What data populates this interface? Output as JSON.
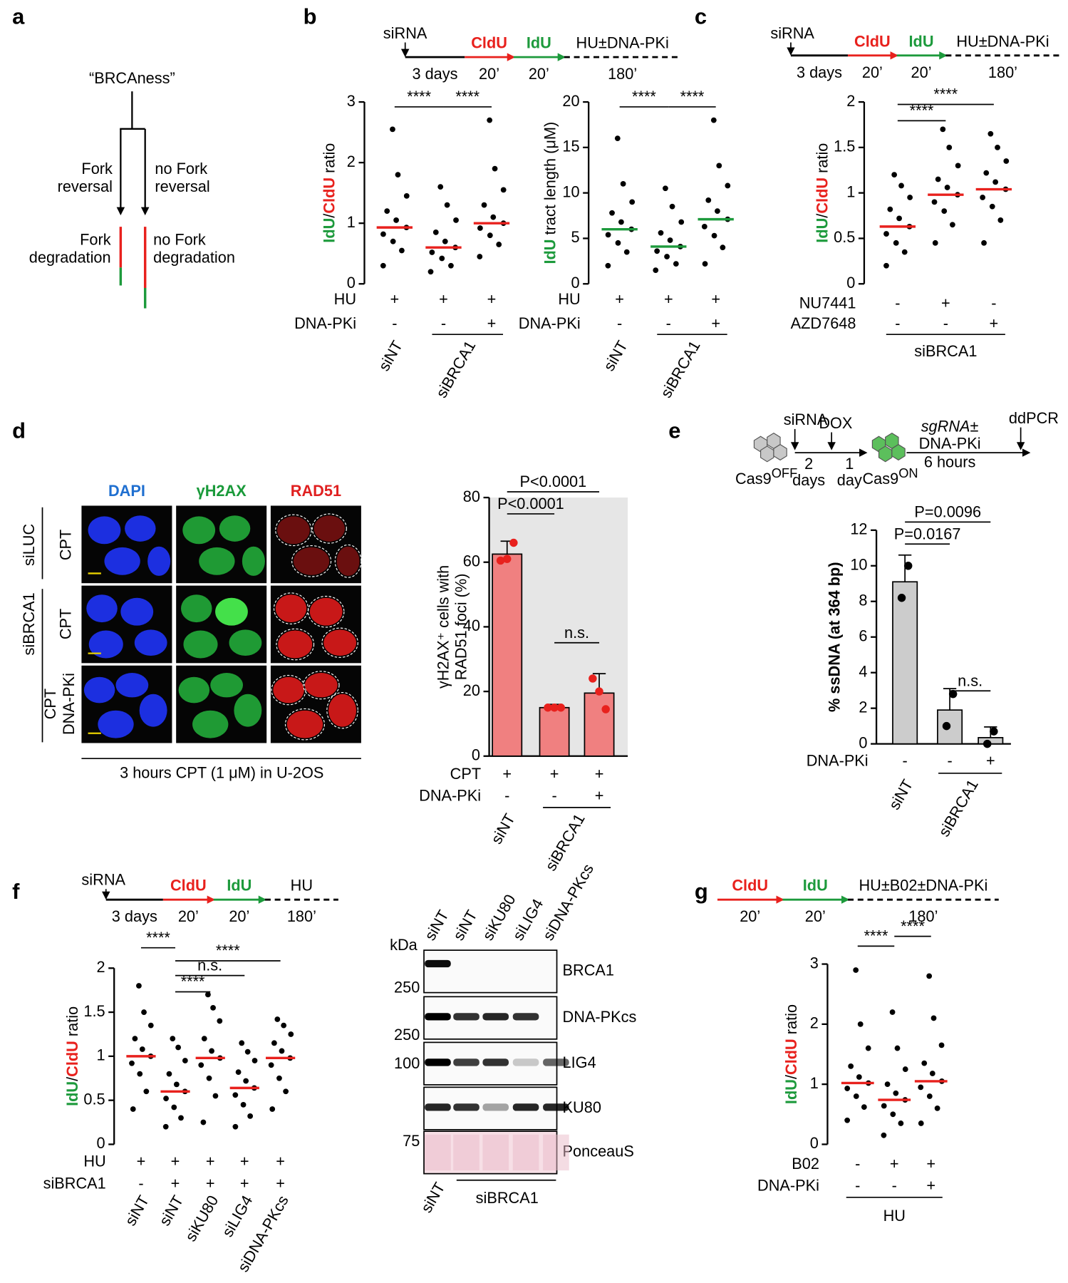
{
  "panel_labels": [
    "a",
    "b",
    "c",
    "d",
    "e",
    "f",
    "g"
  ],
  "diagram_a": {
    "root": "“BRCAness”",
    "left_branch": [
      "Fork",
      "reversal"
    ],
    "right_branch": [
      "no Fork",
      "reversal"
    ],
    "left_outcome": [
      "Fork",
      "degradation"
    ],
    "right_outcome": [
      "no Fork",
      "degradation"
    ]
  },
  "timelines": [
    {
      "start": "siRNA",
      "steps": [
        "CldU",
        "IdU",
        "HU±DNA-PKi"
      ],
      "durations": [
        "3 days",
        "20’",
        "20’",
        "180’"
      ]
    },
    {
      "start": "siRNA",
      "steps": [
        "CldU",
        "IdU",
        "HU±DNA-PKi"
      ],
      "durations": [
        "3 days",
        "20’",
        "20’",
        "180’"
      ]
    },
    {
      "start": "siRNA",
      "steps": [
        "CldU",
        "IdU",
        "HU"
      ],
      "durations": [
        "3 days",
        "20’",
        "20’",
        "180’"
      ]
    },
    {
      "steps": [
        "CldU",
        "IdU",
        "HU±B02±DNA-PKi"
      ],
      "durations": [
        "20’",
        "20’",
        "180’"
      ]
    }
  ],
  "microscopy": {
    "channels": [
      "DAPI",
      "γH2AX",
      "RAD51"
    ],
    "groups": [
      "siLUC",
      "siBRCA1"
    ],
    "treatments": [
      [
        "CPT"
      ],
      [
        "CPT"
      ],
      [
        "CPT",
        "DNA-PKi"
      ]
    ],
    "caption": "3 hours CPT (1 μM) in U-2OS"
  },
  "schematic_e": {
    "start": "siRNA",
    "dox": "DOX",
    "cells_off": [
      "Cas9",
      "OFF"
    ],
    "steps": [
      [
        "2",
        "days"
      ],
      [
        "1",
        "day"
      ]
    ],
    "cells_on": [
      "Cas9",
      "ON"
    ],
    "treatment": [
      "sgRNA±",
      "DNA-PKi",
      "6 hours"
    ],
    "end": "ddPCR"
  },
  "blot": {
    "unit": "kDa",
    "lanes": [
      "siNT",
      "siNT",
      "siKU80",
      "siLIG4",
      "siDNA-PKcs"
    ],
    "markers": [
      250,
      250,
      100,
      75
    ],
    "proteins": [
      "BRCA1",
      "DNA-PKcs",
      "LIG4",
      "KU80",
      "PonceauS"
    ],
    "bottom": [
      "siNT",
      "siBRCA1"
    ]
  },
  "chart_data": [
    {
      "type": "strip",
      "ylabel": [
        {
          "text": "IdU",
          "color": "#1d9a3c"
        },
        {
          "text": "/",
          "color": "#000000"
        },
        {
          "text": "CldU",
          "color": "#e8211d"
        },
        {
          "text": " ratio",
          "color": "#000000"
        }
      ],
      "ylim": [
        0,
        3
      ],
      "yticks": [
        0,
        1,
        2,
        3
      ],
      "median_color": "#e8211d",
      "point_color": "#000000",
      "groups": [
        {
          "median": 0.93,
          "points": [
            0.3,
            0.55,
            0.7,
            0.82,
            0.93,
            1.05,
            1.2,
            1.45,
            1.8,
            2.55
          ]
        },
        {
          "median": 0.6,
          "points": [
            0.2,
            0.3,
            0.42,
            0.52,
            0.6,
            0.7,
            0.85,
            1.05,
            1.3,
            1.6
          ]
        },
        {
          "median": 1.0,
          "points": [
            0.45,
            0.65,
            0.8,
            0.92,
            1.0,
            1.1,
            1.3,
            1.55,
            1.9,
            2.7
          ]
        }
      ],
      "significance": [
        {
          "from": 0,
          "to": 1,
          "label": "****"
        },
        {
          "from": 1,
          "to": 2,
          "label": "****"
        }
      ],
      "conditions": [
        {
          "name": "HU",
          "marks": [
            "+",
            "+",
            "+"
          ]
        },
        {
          "name": "DNA-PKi",
          "marks": [
            "-",
            "-",
            "+"
          ]
        }
      ],
      "group_labels": [
        {
          "text": "siNT",
          "from": 0,
          "to": 0
        },
        {
          "text": "siBRCA1",
          "from": 1,
          "to": 2
        }
      ]
    },
    {
      "type": "strip",
      "ylabel": [
        {
          "text": "IdU",
          "color": "#1d9a3c"
        },
        {
          "text": " tract length (μM)",
          "color": "#000000"
        }
      ],
      "ylim": [
        0,
        20
      ],
      "yticks": [
        0,
        5,
        10,
        15,
        20
      ],
      "median_color": "#1d9a3c",
      "point_color": "#000000",
      "groups": [
        {
          "median": 6,
          "points": [
            2,
            3.5,
            4.5,
            5.4,
            6,
            6.8,
            7.8,
            9,
            11,
            16
          ]
        },
        {
          "median": 4.1,
          "points": [
            1.5,
            2.2,
            3,
            3.6,
            4.1,
            4.8,
            5.6,
            6.8,
            8.5,
            10.5
          ]
        },
        {
          "median": 7.1,
          "points": [
            2.2,
            4,
            5.3,
            6.3,
            7.1,
            8,
            9.2,
            10.8,
            13,
            18
          ]
        }
      ],
      "significance": [
        {
          "from": 0,
          "to": 1,
          "label": "****"
        },
        {
          "from": 1,
          "to": 2,
          "label": "****"
        }
      ],
      "conditions": [
        {
          "name": "HU",
          "marks": [
            "+",
            "+",
            "+"
          ]
        },
        {
          "name": "DNA-PKi",
          "marks": [
            "-",
            "-",
            "+"
          ]
        }
      ],
      "group_labels": [
        {
          "text": "siNT",
          "from": 0,
          "to": 0
        },
        {
          "text": "siBRCA1",
          "from": 1,
          "to": 2
        }
      ]
    },
    {
      "type": "strip",
      "ylabel": [
        {
          "text": "IdU",
          "color": "#1d9a3c"
        },
        {
          "text": "/",
          "color": "#000000"
        },
        {
          "text": "CldU",
          "color": "#e8211d"
        },
        {
          "text": " ratio",
          "color": "#000000"
        }
      ],
      "ylim": [
        0,
        2
      ],
      "yticks": [
        0,
        0.5,
        1,
        1.5,
        2
      ],
      "median_color": "#e8211d",
      "point_color": "#000000",
      "groups": [
        {
          "median": 0.63,
          "points": [
            0.2,
            0.35,
            0.45,
            0.55,
            0.63,
            0.72,
            0.82,
            0.95,
            1.08,
            1.2
          ]
        },
        {
          "median": 0.98,
          "points": [
            0.45,
            0.65,
            0.8,
            0.9,
            0.98,
            1.06,
            1.15,
            1.3,
            1.5,
            1.7
          ]
        },
        {
          "median": 1.04,
          "points": [
            0.45,
            0.7,
            0.85,
            0.95,
            1.04,
            1.12,
            1.22,
            1.35,
            1.5,
            1.65
          ]
        }
      ],
      "significance": [
        {
          "from": 0,
          "to": 1,
          "label": "****"
        },
        {
          "from": 0,
          "to": 2,
          "label": "****"
        }
      ],
      "conditions": [
        {
          "name": "NU7441",
          "marks": [
            "-",
            "+",
            "-"
          ]
        },
        {
          "name": "AZD7648",
          "marks": [
            "-",
            "-",
            "+"
          ]
        }
      ],
      "group_labels": [
        {
          "text": "siBRCA1",
          "from": 0,
          "to": 2
        }
      ]
    },
    {
      "type": "bar",
      "ylabel": [
        "γH2AX⁺ cells with",
        "RAD51 foci (%)"
      ],
      "ylim": [
        0,
        80
      ],
      "yticks": [
        0,
        20,
        40,
        60,
        80
      ],
      "color": "#f08080",
      "point_color": "#e8211d",
      "background": "#e6e6e6",
      "values": [
        62.5,
        15,
        19.5
      ],
      "errors": [
        4,
        1,
        6
      ],
      "points": [
        [
          60.5,
          61,
          66
        ],
        [
          15,
          15,
          15
        ],
        [
          24,
          20,
          14.5
        ]
      ],
      "significance": [
        {
          "from": 0,
          "to": 1,
          "label": "P<0.0001"
        },
        {
          "from": 0,
          "to": 2,
          "label": "P<0.0001"
        },
        {
          "from": 1,
          "to": 2,
          "label": "n.s."
        }
      ],
      "conditions": [
        {
          "name": "CPT",
          "marks": [
            "+",
            "+",
            "+"
          ]
        },
        {
          "name": "DNA-PKi",
          "marks": [
            "-",
            "-",
            "+"
          ]
        }
      ],
      "group_labels": [
        {
          "text": "siNT",
          "from": 0,
          "to": 0
        },
        {
          "text": "siBRCA1",
          "from": 1,
          "to": 2
        }
      ]
    },
    {
      "type": "bar",
      "ylabel": "% ssDNA (at 364 bp)",
      "ylim": [
        0,
        12
      ],
      "yticks": [
        0,
        2,
        4,
        6,
        8,
        10,
        12
      ],
      "color": "#cccccc",
      "point_color": "#000000",
      "values": [
        9.1,
        1.9,
        0.35
      ],
      "errors": [
        1.5,
        1.2,
        0.6
      ],
      "points": [
        [
          8.2,
          10.0
        ],
        [
          1.0,
          2.8
        ],
        [
          0,
          0.7
        ]
      ],
      "significance": [
        {
          "from": 0,
          "to": 1,
          "label": "P=0.0167"
        },
        {
          "from": 0,
          "to": 2,
          "label": "P=0.0096"
        },
        {
          "from": 1,
          "to": 2,
          "label": "n.s."
        }
      ],
      "conditions": [
        {
          "name": "DNA-PKi",
          "marks": [
            "-",
            "-",
            "+"
          ]
        }
      ],
      "group_labels": [
        {
          "text": "siNT",
          "from": 0,
          "to": 0
        },
        {
          "text": "siBRCA1",
          "from": 1,
          "to": 2
        }
      ]
    },
    {
      "type": "strip",
      "ylabel": [
        {
          "text": "IdU",
          "color": "#1d9a3c"
        },
        {
          "text": "/",
          "color": "#000000"
        },
        {
          "text": "CldU",
          "color": "#e8211d"
        },
        {
          "text": " ratio",
          "color": "#000000"
        }
      ],
      "ylim": [
        0,
        2
      ],
      "yticks": [
        0,
        0.5,
        1,
        1.5,
        2
      ],
      "median_color": "#e8211d",
      "point_color": "#000000",
      "groups": [
        {
          "median": 1.0,
          "points": [
            0.4,
            0.6,
            0.8,
            0.92,
            1.0,
            1.08,
            1.2,
            1.35,
            1.5,
            1.8
          ]
        },
        {
          "median": 0.6,
          "points": [
            0.2,
            0.3,
            0.42,
            0.52,
            0.6,
            0.68,
            0.8,
            0.95,
            1.1,
            1.2
          ]
        },
        {
          "median": 0.98,
          "points": [
            0.25,
            0.55,
            0.75,
            0.9,
            0.98,
            1.06,
            1.2,
            1.4,
            1.55,
            1.7
          ]
        },
        {
          "median": 0.64,
          "points": [
            0.2,
            0.32,
            0.45,
            0.56,
            0.64,
            0.72,
            0.82,
            0.95,
            1.05,
            1.15
          ]
        },
        {
          "median": 0.98,
          "points": [
            0.4,
            0.6,
            0.75,
            0.9,
            0.98,
            1.06,
            1.15,
            1.25,
            1.35,
            1.42
          ]
        }
      ],
      "significance": [
        {
          "from": 1,
          "to": 2,
          "label": "****"
        },
        {
          "from": 1,
          "to": 3,
          "label": "n.s."
        },
        {
          "from": 1,
          "to": 4,
          "label": "****"
        },
        {
          "from": 0,
          "to": 1,
          "label": "****"
        }
      ],
      "conditions": [
        {
          "name": "HU",
          "marks": [
            "+",
            "+",
            "+",
            "+",
            "+"
          ]
        },
        {
          "name": "siBRCA1",
          "marks": [
            "-",
            "+",
            "+",
            "+",
            "+"
          ]
        }
      ],
      "group_labels": [
        {
          "text": "siNT",
          "from": 0,
          "to": 0
        },
        {
          "text": "siNT",
          "from": 1,
          "to": 1
        },
        {
          "text": "siKU80",
          "from": 2,
          "to": 2
        },
        {
          "text": "siLIG4",
          "from": 3,
          "to": 3
        },
        {
          "text": "siDNA-PKcs",
          "from": 4,
          "to": 4
        }
      ]
    },
    {
      "type": "strip",
      "ylabel": [
        {
          "text": "IdU",
          "color": "#1d9a3c"
        },
        {
          "text": "/",
          "color": "#000000"
        },
        {
          "text": "CldU",
          "color": "#e8211d"
        },
        {
          "text": " ratio",
          "color": "#000000"
        }
      ],
      "ylim": [
        0,
        3
      ],
      "yticks": [
        0,
        1,
        2,
        3
      ],
      "median_color": "#e8211d",
      "point_color": "#000000",
      "groups": [
        {
          "median": 1.02,
          "points": [
            0.4,
            0.62,
            0.8,
            0.93,
            1.02,
            1.12,
            1.3,
            1.6,
            2.0,
            2.9
          ]
        },
        {
          "median": 0.74,
          "points": [
            0.15,
            0.35,
            0.5,
            0.64,
            0.74,
            0.85,
            1.0,
            1.25,
            1.6,
            2.2
          ]
        },
        {
          "median": 1.05,
          "points": [
            0.35,
            0.6,
            0.8,
            0.95,
            1.05,
            1.18,
            1.35,
            1.65,
            2.1,
            2.8
          ]
        }
      ],
      "significance": [
        {
          "from": 0,
          "to": 1,
          "label": "****"
        },
        {
          "from": 1,
          "to": 2,
          "label": "****"
        }
      ],
      "conditions": [
        {
          "name": "B02",
          "marks": [
            "-",
            "+",
            "+"
          ]
        },
        {
          "name": "DNA-PKi",
          "marks": [
            "-",
            "-",
            "+"
          ]
        }
      ],
      "group_labels": [
        {
          "text": "HU",
          "from": 0,
          "to": 2
        }
      ]
    }
  ]
}
